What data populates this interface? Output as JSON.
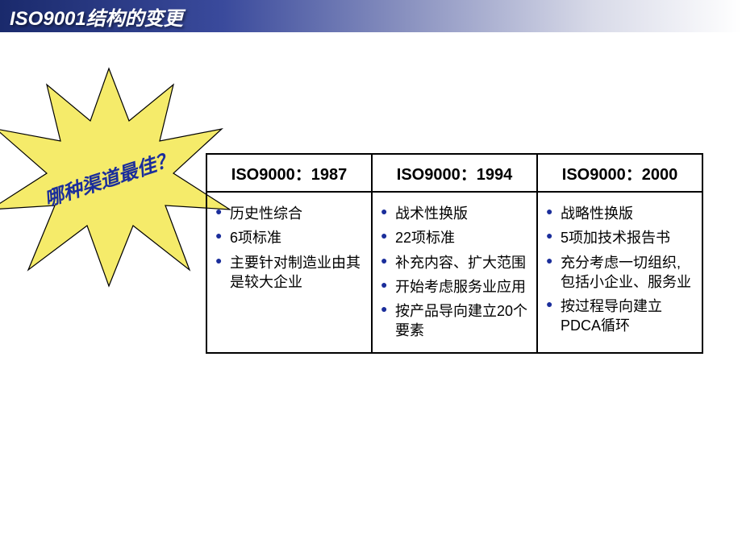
{
  "title": "ISO9001结构的变更",
  "starburst": {
    "label": "哪种渠道最佳？",
    "fill_color": "#f5eb6a",
    "stroke_color": "#000000",
    "label_color": "#1b2e9b",
    "label_fontsize": 24
  },
  "table": {
    "border_color": "#000000",
    "bullet_color": "#1b2e9b",
    "header_fontsize": 20,
    "cell_fontsize": 18,
    "columns": [
      {
        "header": "ISO9000：1987",
        "items": [
          "历史性综合",
          "6项标准",
          "主要针对制造业由其是较大企业"
        ]
      },
      {
        "header": "ISO9000：1994",
        "items": [
          "战术性换版",
          "22项标准",
          "补充内容、扩大范围",
          "开始考虑服务业应用",
          "按产品导向建立20个要素"
        ]
      },
      {
        "header": "ISO9000：2000",
        "items": [
          "战略性换版",
          "5项加技术报告书",
          "充分考虑一切组织,包括小企业、服务业",
          "按过程导向建立PDCA循环"
        ]
      }
    ]
  },
  "colors": {
    "title_gradient_start": "#1a2a6c",
    "title_gradient_end": "#ffffff",
    "title_text": "#ffffff",
    "background": "#ffffff"
  }
}
